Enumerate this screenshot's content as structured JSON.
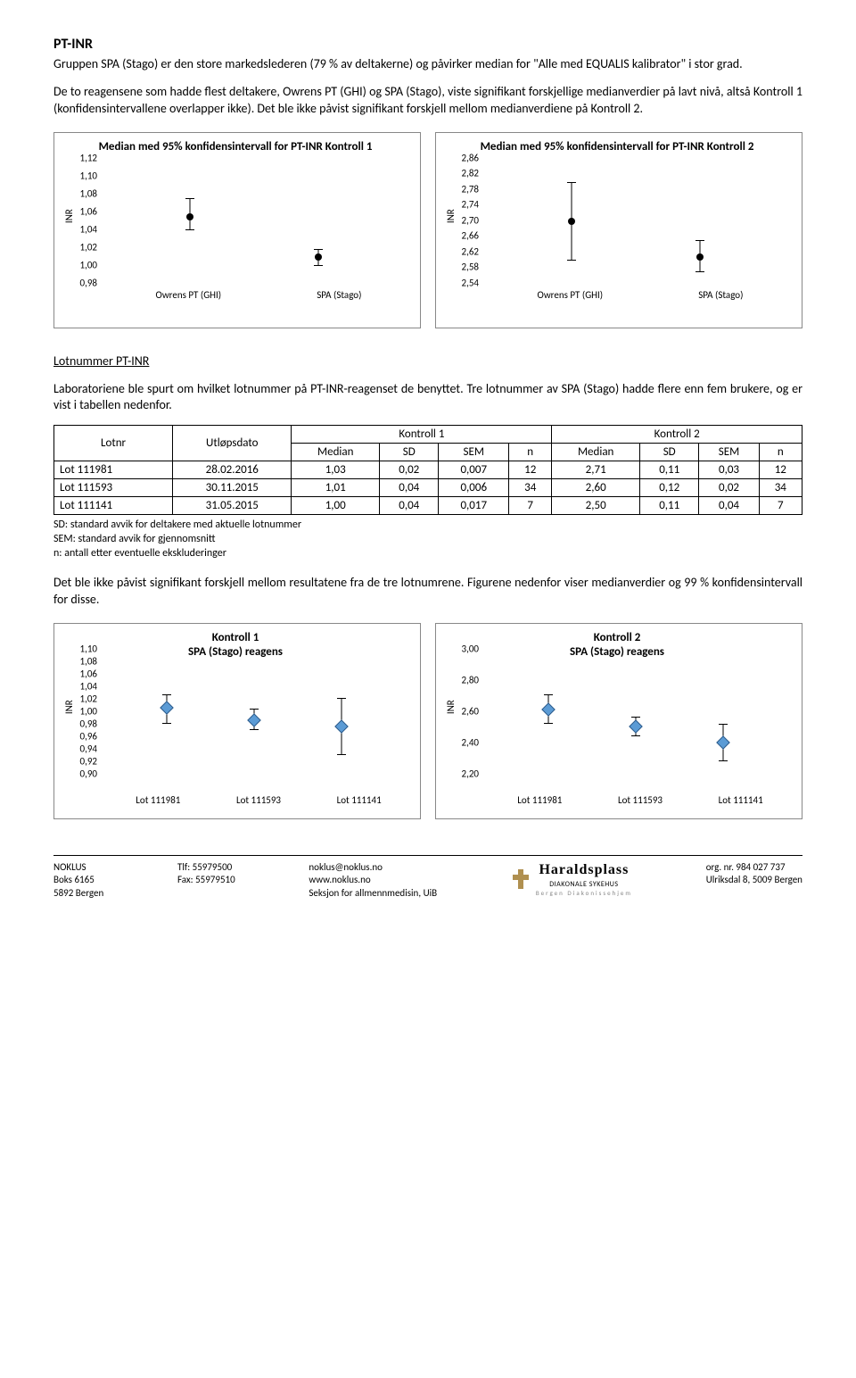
{
  "heading": "PT-INR",
  "para1": "Gruppen SPA (Stago) er den store markedslederen (79 % av deltakerne) og påvirker median for \"Alle med EQUALIS kalibrator\" i stor grad.",
  "para2": "De to reagensene som hadde flest deltakere, Owrens PT (GHI) og SPA (Stago), viste signifikant forskjellige medianverdier på lavt nivå, altså Kontroll 1 (konfidensintervallene overlapper ikke). Det ble ikke påvist signifikant forskjell mellom medianverdiene på Kontroll 2.",
  "chart1a": {
    "title": "Median med 95% konfidensintervall for PT-INR Kontroll 1",
    "ylabel": "INR",
    "ylim": [
      0.98,
      1.12
    ],
    "yticks": [
      "0,98",
      "1,00",
      "1,02",
      "1,04",
      "1,06",
      "1,08",
      "1,10",
      "1,12"
    ],
    "categories": [
      "Owrens PT (GHI)",
      "SPA (Stago)"
    ],
    "points": [
      {
        "x": 0.28,
        "y": 1.055,
        "lo": 1.04,
        "hi": 1.075
      },
      {
        "x": 0.72,
        "y": 1.01,
        "lo": 1.0,
        "hi": 1.018
      }
    ],
    "marker": "circle",
    "marker_color": "#000000"
  },
  "chart1b": {
    "title": "Median med 95% konfidensintervall for PT-INR Kontroll 2",
    "ylabel": "INR",
    "ylim": [
      2.54,
      2.86
    ],
    "yticks": [
      "2,54",
      "2,58",
      "2,62",
      "2,66",
      "2,70",
      "2,74",
      "2,78",
      "2,82",
      "2,86"
    ],
    "categories": [
      "Owrens PT (GHI)",
      "SPA (Stago)"
    ],
    "points": [
      {
        "x": 0.28,
        "y": 2.7,
        "lo": 2.6,
        "hi": 2.8
      },
      {
        "x": 0.72,
        "y": 2.61,
        "lo": 2.57,
        "hi": 2.65
      }
    ],
    "marker": "circle",
    "marker_color": "#000000"
  },
  "lotHeading": "Lotnummer PT-INR",
  "para3": "Laboratoriene ble spurt om hvilket lotnummer på PT-INR-reagenset de benyttet. Tre lotnummer av SPA (Stago) hadde flere enn fem brukere, og er vist i tabellen nedenfor.",
  "table": {
    "topHeaders": [
      "Lotnr",
      "Utløpsdato",
      "Kontroll 1",
      "Kontroll 2"
    ],
    "subHeaders": [
      "Median",
      "SD",
      "SEM",
      "n",
      "Median",
      "SD",
      "SEM",
      "n"
    ],
    "rows": [
      [
        "Lot 111981",
        "28.02.2016",
        "1,03",
        "0,02",
        "0,007",
        "12",
        "2,71",
        "0,11",
        "0,03",
        "12"
      ],
      [
        "Lot 111593",
        "30.11.2015",
        "1,01",
        "0,04",
        "0,006",
        "34",
        "2,60",
        "0,12",
        "0,02",
        "34"
      ],
      [
        "Lot 111141",
        "31.05.2015",
        "1,00",
        "0,04",
        "0,017",
        "7",
        "2,50",
        "0,11",
        "0,04",
        "7"
      ]
    ]
  },
  "notes": [
    "SD: standard avvik for deltakere med aktuelle lotnummer",
    "SEM: standard avvik for gjennomsnitt",
    "n: antall etter eventuelle ekskluderinger"
  ],
  "para4": "Det ble ikke påvist signifikant forskjell mellom resultatene fra de tre lotnumrene. Figurene nedenfor viser medianverdier og 99 % konfidensintervall for disse.",
  "chart2a": {
    "title": "Kontroll 1\nSPA (Stago) reagens",
    "ylabel": "INR",
    "ylim": [
      0.9,
      1.1
    ],
    "yticks": [
      "0,90",
      "0,92",
      "0,94",
      "0,96",
      "0,98",
      "1,00",
      "1,02",
      "1,04",
      "1,06",
      "1,08",
      "1,10"
    ],
    "categories": [
      "Lot 111981",
      "Lot 111593",
      "Lot 111141"
    ],
    "points": [
      {
        "x": 0.2,
        "y": 1.03,
        "lo": 1.005,
        "hi": 1.05
      },
      {
        "x": 0.5,
        "y": 1.01,
        "lo": 0.995,
        "hi": 1.028
      },
      {
        "x": 0.8,
        "y": 1.0,
        "lo": 0.955,
        "hi": 1.045
      }
    ],
    "marker": "diamond",
    "marker_color": "#5b9bd5"
  },
  "chart2b": {
    "title": "Kontroll 2\nSPA (Stago) reagens",
    "ylabel": "INR",
    "ylim": [
      2.2,
      3.0
    ],
    "yticks": [
      "2,20",
      "2,40",
      "2,60",
      "2,80",
      "3,00"
    ],
    "categories": [
      "Lot 111981",
      "Lot 111593",
      "Lot 111141"
    ],
    "points": [
      {
        "x": 0.2,
        "y": 2.71,
        "lo": 2.62,
        "hi": 2.8
      },
      {
        "x": 0.5,
        "y": 2.6,
        "lo": 2.54,
        "hi": 2.66
      },
      {
        "x": 0.8,
        "y": 2.5,
        "lo": 2.38,
        "hi": 2.61
      }
    ],
    "marker": "diamond",
    "marker_color": "#5b9bd5"
  },
  "footer": {
    "col1": [
      "NOKLUS",
      "Boks 6165",
      "5892 Bergen"
    ],
    "col2": [
      "Tlf:  55979500",
      "Fax: 55979510"
    ],
    "col3": [
      "noklus@noklus.no",
      "www.noklus.no",
      "Seksjon for allmennmedisin, UiB"
    ],
    "logo": {
      "name": "Haraldsplass",
      "sub": "DIAKONALE SYKEHUS",
      "sub2": "Bergen Diakonissehjem"
    },
    "col5": [
      "org. nr. 984 027 737",
      "Ulriksdal 8, 5009 Bergen"
    ]
  }
}
